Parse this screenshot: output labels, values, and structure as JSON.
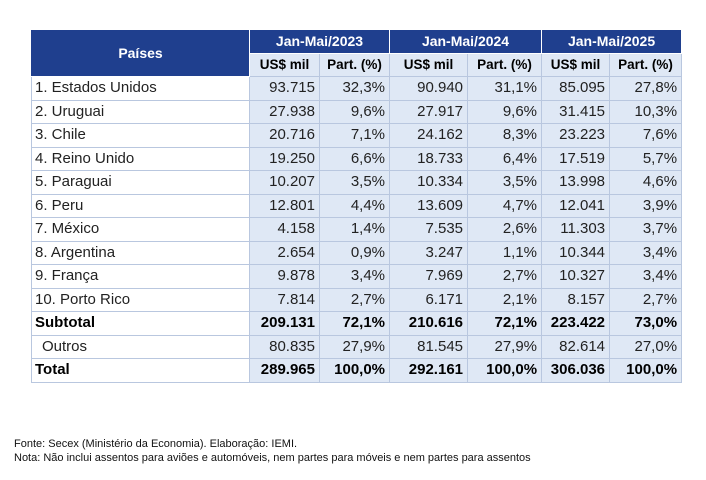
{
  "header": {
    "country_col": "Países",
    "periods": [
      "Jan-Mai/2023",
      "Jan-Mai/2024",
      "Jan-Mai/2025"
    ],
    "sub_value": "US$ mil",
    "sub_part": "Part. (%)"
  },
  "rows": [
    {
      "country": "1. Estados Unidos",
      "v1": "93.715",
      "p1": "32,3%",
      "v2": "90.940",
      "p2": "31,1%",
      "v3": "85.095",
      "p3": "27,8%"
    },
    {
      "country": "2. Uruguai",
      "v1": "27.938",
      "p1": "9,6%",
      "v2": "27.917",
      "p2": "9,6%",
      "v3": "31.415",
      "p3": "10,3%"
    },
    {
      "country": "3. Chile",
      "v1": "20.716",
      "p1": "7,1%",
      "v2": "24.162",
      "p2": "8,3%",
      "v3": "23.223",
      "p3": "7,6%"
    },
    {
      "country": "4. Reino Unido",
      "v1": "19.250",
      "p1": "6,6%",
      "v2": "18.733",
      "p2": "6,4%",
      "v3": "17.519",
      "p3": "5,7%"
    },
    {
      "country": "5. Paraguai",
      "v1": "10.207",
      "p1": "3,5%",
      "v2": "10.334",
      "p2": "3,5%",
      "v3": "13.998",
      "p3": "4,6%"
    },
    {
      "country": "6. Peru",
      "v1": "12.801",
      "p1": "4,4%",
      "v2": "13.609",
      "p2": "4,7%",
      "v3": "12.041",
      "p3": "3,9%"
    },
    {
      "country": "7. México",
      "v1": "4.158",
      "p1": "1,4%",
      "v2": "7.535",
      "p2": "2,6%",
      "v3": "11.303",
      "p3": "3,7%"
    },
    {
      "country": "8. Argentina",
      "v1": "2.654",
      "p1": "0,9%",
      "v2": "3.247",
      "p2": "1,1%",
      "v3": "10.344",
      "p3": "3,4%"
    },
    {
      "country": "9. França",
      "v1": "9.878",
      "p1": "3,4%",
      "v2": "7.969",
      "p2": "2,7%",
      "v3": "10.327",
      "p3": "3,4%"
    },
    {
      "country": "10. Porto Rico",
      "v1": "7.814",
      "p1": "2,7%",
      "v2": "6.171",
      "p2": "2,1%",
      "v3": "8.157",
      "p3": "2,7%"
    }
  ],
  "subtotal": {
    "label": "Subtotal",
    "v1": "209.131",
    "p1": "72,1%",
    "v2": "210.616",
    "p2": "72,1%",
    "v3": "223.422",
    "p3": "73,0%"
  },
  "outros": {
    "label": "Outros",
    "v1": "80.835",
    "p1": "27,9%",
    "v2": "81.545",
    "p2": "27,9%",
    "v3": "82.614",
    "p3": "27,0%"
  },
  "total": {
    "label": "Total",
    "v1": "289.965",
    "p1": "100,0%",
    "v2": "292.161",
    "p2": "100,0%",
    "v3": "306.036",
    "p3": "100,0%"
  },
  "notes": {
    "source": "Fonte: Secex (Ministério da Economia). Elaboração: IEMI.",
    "note": "Nota: Não inclui assentos para aviões e automóveis, nem partes para móveis e nem partes para assentos"
  }
}
